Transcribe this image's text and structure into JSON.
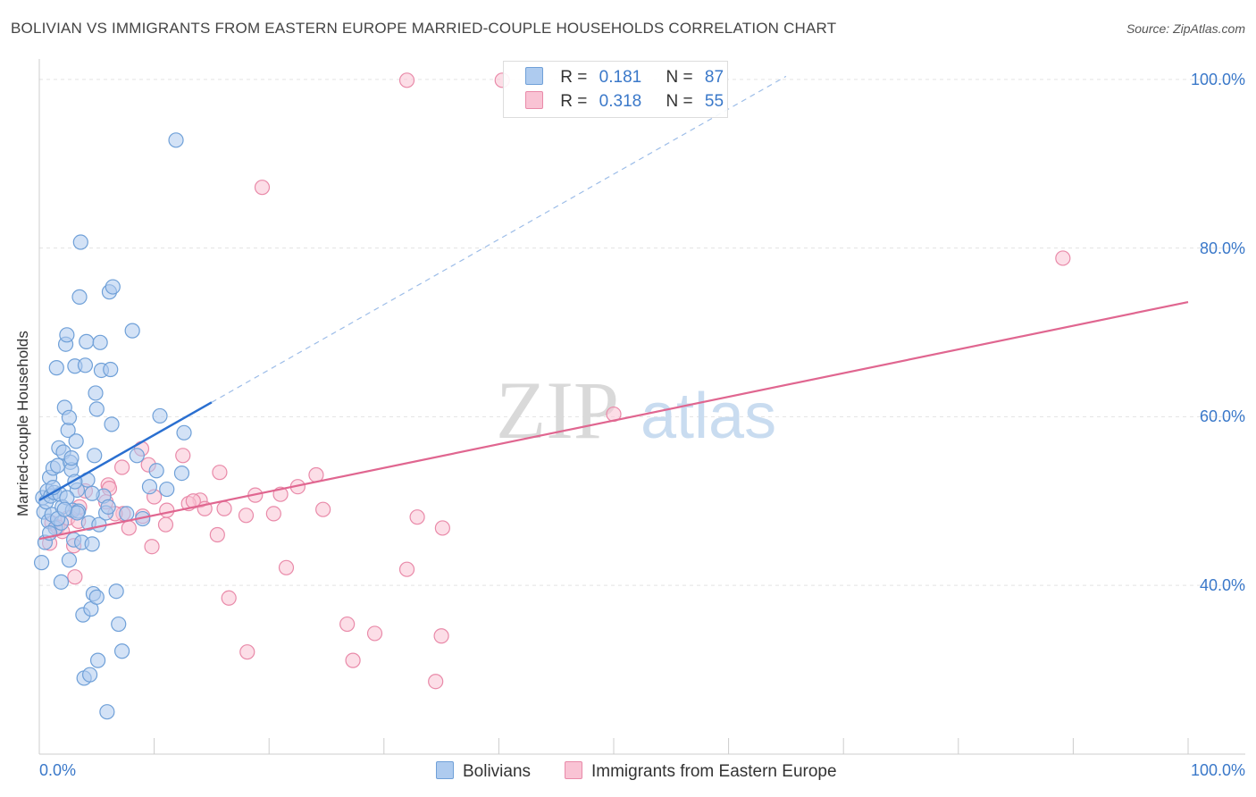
{
  "title": "BOLIVIAN VS IMMIGRANTS FROM EASTERN EUROPE MARRIED-COUPLE HOUSEHOLDS CORRELATION CHART",
  "source": "Source: ZipAtlas.com",
  "watermark": {
    "zip": "ZIP",
    "atlas": "atlas"
  },
  "legend": {
    "series1": {
      "r_label": "R =",
      "r_value": "0.181",
      "n_label": "N =",
      "n_value": "87"
    },
    "series2": {
      "r_label": "R =",
      "r_value": "0.318",
      "n_label": "N =",
      "n_value": "55"
    }
  },
  "bottom_legend": {
    "series1": "Bolivians",
    "series2": "Immigrants from Eastern Europe"
  },
  "colors": {
    "blue_fill": "#aecbef",
    "blue_stroke": "#6fa0d8",
    "blue_line": "#2a6fd0",
    "pink_fill": "#f9c3d4",
    "pink_stroke": "#e98aa9",
    "pink_line": "#e06690",
    "tick_text": "#3a78c9"
  },
  "chart_data": {
    "type": "scatter",
    "title": "BOLIVIAN VS IMMIGRANTS FROM EASTERN EUROPE MARRIED-COUPLE HOUSEHOLDS CORRELATION CHART",
    "xlabel": "",
    "ylabel": "Married-couple Households",
    "xlim": [
      0,
      100
    ],
    "ylim": [
      22,
      102
    ],
    "x_tick_labels": {
      "left": "0.0%",
      "right": "100.0%"
    },
    "y_ticks": [
      {
        "value": 40,
        "label": "40.0%"
      },
      {
        "value": 60,
        "label": "60.0%"
      },
      {
        "value": 80,
        "label": "80.0%"
      },
      {
        "value": 100,
        "label": "100.0%"
      }
    ],
    "grid": true,
    "series": [
      {
        "name": "Bolivians",
        "R": 0.181,
        "N": 87,
        "trend": {
          "x": [
            0,
            15
          ],
          "y": [
            50.1,
            61.7
          ],
          "dashed_extension_to": [
            65,
            100
          ]
        },
        "points": [
          [
            0.3,
            50.4
          ],
          [
            0.4,
            48.7
          ],
          [
            0.5,
            45.1
          ],
          [
            0.6,
            49.9
          ],
          [
            0.7,
            51.2
          ],
          [
            0.8,
            47.6
          ],
          [
            0.9,
            52.8
          ],
          [
            1.0,
            50.6
          ],
          [
            1.1,
            48.4
          ],
          [
            1.2,
            53.9
          ],
          [
            1.3,
            51.0
          ],
          [
            1.4,
            46.8
          ],
          [
            1.5,
            65.8
          ],
          [
            1.6,
            54.2
          ],
          [
            1.7,
            56.3
          ],
          [
            1.8,
            50.8
          ],
          [
            1.9,
            47.4
          ],
          [
            2.0,
            49.3
          ],
          [
            2.1,
            55.8
          ],
          [
            2.2,
            61.1
          ],
          [
            2.3,
            68.6
          ],
          [
            2.4,
            69.7
          ],
          [
            2.5,
            58.4
          ],
          [
            2.6,
            59.9
          ],
          [
            2.7,
            54.6
          ],
          [
            2.8,
            53.7
          ],
          [
            2.9,
            48.9
          ],
          [
            3.0,
            45.4
          ],
          [
            3.1,
            66.0
          ],
          [
            3.2,
            57.1
          ],
          [
            3.3,
            51.3
          ],
          [
            3.4,
            48.8
          ],
          [
            3.5,
            74.2
          ],
          [
            3.6,
            80.7
          ],
          [
            3.7,
            45.1
          ],
          [
            3.8,
            36.5
          ],
          [
            3.9,
            29.0
          ],
          [
            4.0,
            66.1
          ],
          [
            4.1,
            68.9
          ],
          [
            4.2,
            52.5
          ],
          [
            4.3,
            47.4
          ],
          [
            4.4,
            29.4
          ],
          [
            4.5,
            37.2
          ],
          [
            4.6,
            44.9
          ],
          [
            4.7,
            39.0
          ],
          [
            4.8,
            55.4
          ],
          [
            4.9,
            62.8
          ],
          [
            5.0,
            60.9
          ],
          [
            5.1,
            31.1
          ],
          [
            5.2,
            47.2
          ],
          [
            5.3,
            68.8
          ],
          [
            5.4,
            65.5
          ],
          [
            5.6,
            50.6
          ],
          [
            5.8,
            48.6
          ],
          [
            5.9,
            25.0
          ],
          [
            6.0,
            49.3
          ],
          [
            6.1,
            74.8
          ],
          [
            6.2,
            65.6
          ],
          [
            6.3,
            59.1
          ],
          [
            6.4,
            75.4
          ],
          [
            6.7,
            39.3
          ],
          [
            6.9,
            35.4
          ],
          [
            7.2,
            32.2
          ],
          [
            7.6,
            48.5
          ],
          [
            8.1,
            70.2
          ],
          [
            8.5,
            55.4
          ],
          [
            9.0,
            47.9
          ],
          [
            9.6,
            51.7
          ],
          [
            10.2,
            53.6
          ],
          [
            10.5,
            60.1
          ],
          [
            11.1,
            51.4
          ],
          [
            11.9,
            92.8
          ],
          [
            12.4,
            53.3
          ],
          [
            12.6,
            58.1
          ],
          [
            1.2,
            51.6
          ],
          [
            2.6,
            43.0
          ],
          [
            3.3,
            48.6
          ],
          [
            1.9,
            40.4
          ],
          [
            0.9,
            46.2
          ],
          [
            2.4,
            50.4
          ],
          [
            4.6,
            50.9
          ],
          [
            1.6,
            47.9
          ],
          [
            3.1,
            52.3
          ],
          [
            5.0,
            38.6
          ],
          [
            2.2,
            49.0
          ],
          [
            0.2,
            42.7
          ],
          [
            2.8,
            55.1
          ]
        ]
      },
      {
        "name": "Immigrants from Eastern Europe",
        "R": 0.318,
        "N": 55,
        "trend": {
          "x": [
            0,
            100
          ],
          "y": [
            45.5,
            73.6
          ]
        },
        "points": [
          [
            32.0,
            99.9
          ],
          [
            40.3,
            99.9
          ],
          [
            19.4,
            87.2
          ],
          [
            89.1,
            78.8
          ],
          [
            50.0,
            60.3
          ],
          [
            8.9,
            56.2
          ],
          [
            12.5,
            55.4
          ],
          [
            7.2,
            54.0
          ],
          [
            9.5,
            54.3
          ],
          [
            15.7,
            53.4
          ],
          [
            24.1,
            53.1
          ],
          [
            6.0,
            51.9
          ],
          [
            6.1,
            51.5
          ],
          [
            22.5,
            51.7
          ],
          [
            4.0,
            51.2
          ],
          [
            10.0,
            50.5
          ],
          [
            14.0,
            50.1
          ],
          [
            13.0,
            49.7
          ],
          [
            18.8,
            50.7
          ],
          [
            21.0,
            50.8
          ],
          [
            5.8,
            49.9
          ],
          [
            3.5,
            49.3
          ],
          [
            11.1,
            48.9
          ],
          [
            16.1,
            49.1
          ],
          [
            24.7,
            49.0
          ],
          [
            7.3,
            48.5
          ],
          [
            9.0,
            48.2
          ],
          [
            14.4,
            49.1
          ],
          [
            18.0,
            48.3
          ],
          [
            20.4,
            48.5
          ],
          [
            32.9,
            48.1
          ],
          [
            2.5,
            48.0
          ],
          [
            3.4,
            47.6
          ],
          [
            1.1,
            47.4
          ],
          [
            1.6,
            46.9
          ],
          [
            11.0,
            47.2
          ],
          [
            7.8,
            46.8
          ],
          [
            35.1,
            46.8
          ],
          [
            15.5,
            46.0
          ],
          [
            0.9,
            45.0
          ],
          [
            9.8,
            44.6
          ],
          [
            3.1,
            41.0
          ],
          [
            21.5,
            42.1
          ],
          [
            32.0,
            41.9
          ],
          [
            16.5,
            38.5
          ],
          [
            26.8,
            35.4
          ],
          [
            29.2,
            34.3
          ],
          [
            35.0,
            34.0
          ],
          [
            18.1,
            32.1
          ],
          [
            27.3,
            31.1
          ],
          [
            34.5,
            28.6
          ],
          [
            2.0,
            46.4
          ],
          [
            13.4,
            50.0
          ],
          [
            6.6,
            48.5
          ],
          [
            3.0,
            44.7
          ]
        ]
      }
    ]
  }
}
